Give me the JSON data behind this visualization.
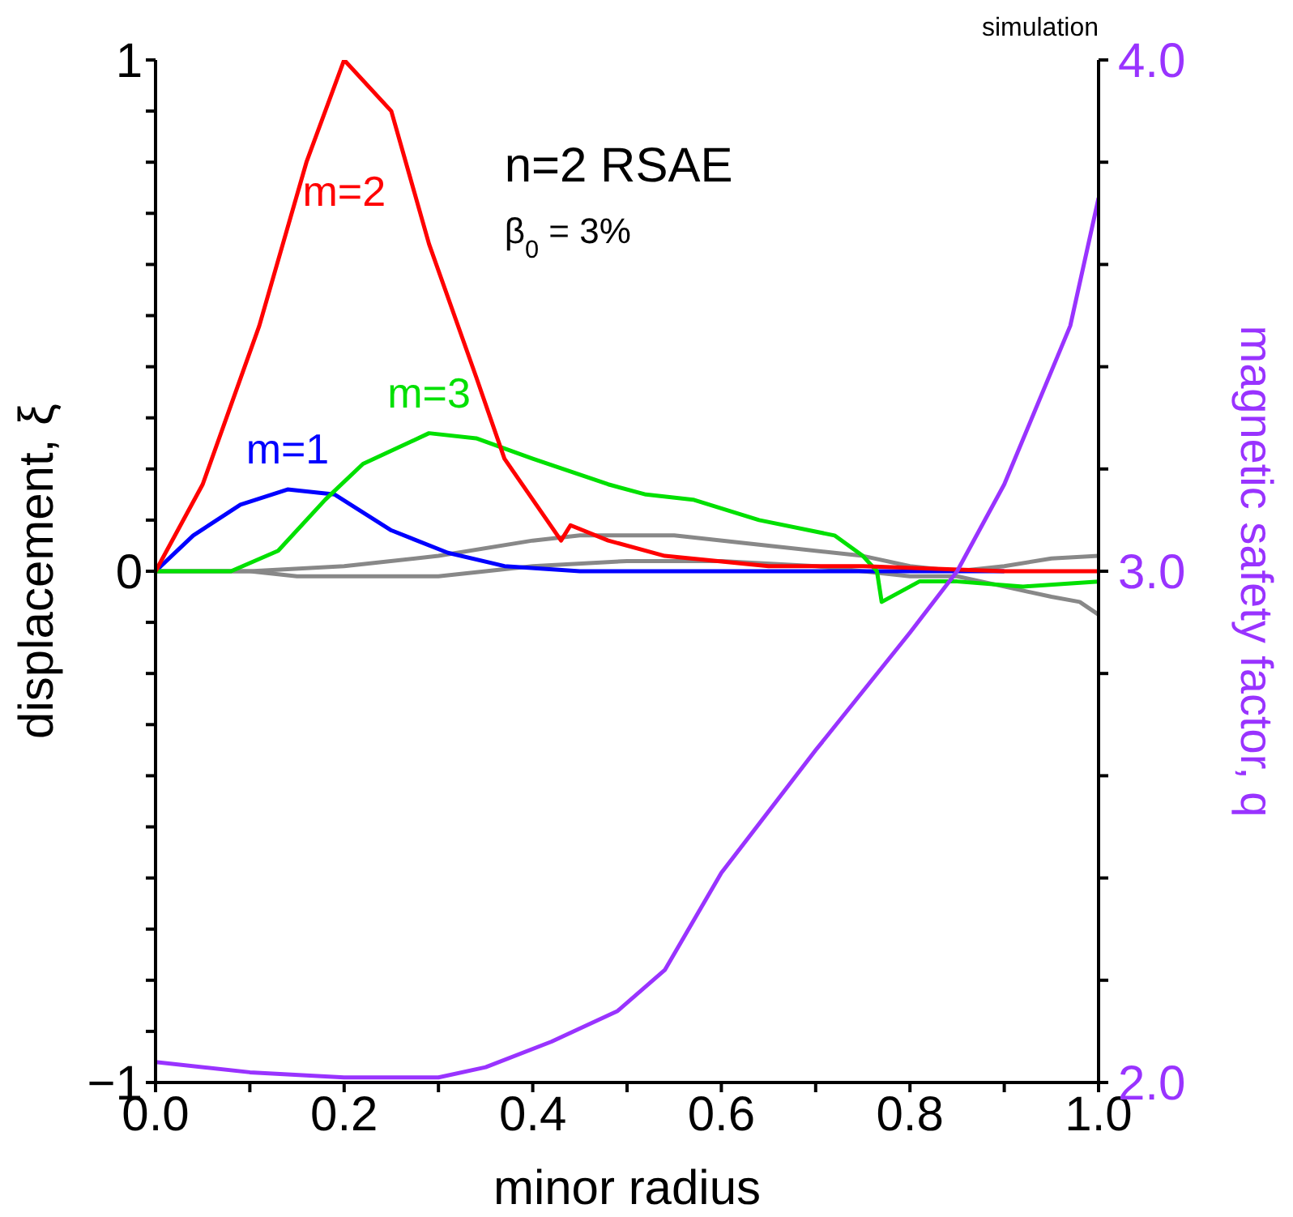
{
  "chart_data": {
    "type": "line",
    "xlabel": "minor radius",
    "ylabel": "displacement, ξ",
    "y2label": "magnetic safety factor, q",
    "annotations": [
      "simulation",
      "n=2 RSAE",
      "β$_{0}$ = 3%"
    ],
    "xlim": [
      0,
      1
    ],
    "xticks": [
      {
        "value": 0,
        "label": "0.0"
      },
      {
        "value": 0.1,
        "label": null
      },
      {
        "value": 0.2,
        "label": "0.2"
      },
      {
        "value": 0.3,
        "label": null
      },
      {
        "value": 0.4,
        "label": "0.4"
      },
      {
        "value": 0.5,
        "label": null
      },
      {
        "value": 0.6,
        "label": "0.6"
      },
      {
        "value": 0.7,
        "label": null
      },
      {
        "value": 0.8,
        "label": "0.8"
      },
      {
        "value": 0.9,
        "label": null
      },
      {
        "value": 1,
        "label": "1.0"
      }
    ],
    "ylim": [
      -1,
      1
    ],
    "yticks": [
      {
        "value": -1,
        "label": "−1"
      },
      {
        "value": -0.9,
        "label": null
      },
      {
        "value": -0.8,
        "label": null
      },
      {
        "value": -0.7,
        "label": null
      },
      {
        "value": -0.6,
        "label": null
      },
      {
        "value": -0.5,
        "label": null
      },
      {
        "value": -0.4,
        "label": null
      },
      {
        "value": -0.3,
        "label": null
      },
      {
        "value": -0.2,
        "label": null
      },
      {
        "value": -0.1,
        "label": null
      },
      {
        "value": 0,
        "label": "0"
      },
      {
        "value": 0.1,
        "label": null
      },
      {
        "value": 0.2,
        "label": null
      },
      {
        "value": 0.3,
        "label": null
      },
      {
        "value": 0.4,
        "label": null
      },
      {
        "value": 0.5,
        "label": null
      },
      {
        "value": 0.6,
        "label": null
      },
      {
        "value": 0.7,
        "label": null
      },
      {
        "value": 0.8,
        "label": null
      },
      {
        "value": 0.9,
        "label": null
      },
      {
        "value": 1,
        "label": "1"
      }
    ],
    "y2lim": [
      2,
      4
    ],
    "y2ticks": [
      {
        "value": 2,
        "label": "2.0"
      },
      {
        "value": 2.2,
        "label": null
      },
      {
        "value": 2.4,
        "label": null
      },
      {
        "value": 2.6,
        "label": null
      },
      {
        "value": 2.8,
        "label": null
      },
      {
        "value": 3,
        "label": "3.0"
      },
      {
        "value": 3.2,
        "label": null
      },
      {
        "value": 3.4,
        "label": null
      },
      {
        "value": 3.6,
        "label": null
      },
      {
        "value": 3.8,
        "label": null
      },
      {
        "value": 4,
        "label": "4.0"
      }
    ],
    "marker": "none",
    "line_style": "solid",
    "series": [
      {
        "color": "#888888",
        "x": [
          0,
          0.1,
          0.2,
          0.3,
          0.4,
          0.45,
          0.55,
          0.65,
          0.75,
          0.8,
          0.85,
          0.9,
          0.95,
          1.0
        ],
        "values": [
          0,
          0,
          0.01,
          0.03,
          0.06,
          0.07,
          0.07,
          0.05,
          0.03,
          0.01,
          0,
          0.01,
          0.025,
          0.03
        ]
      },
      {
        "color": "#888888",
        "x": [
          0,
          0.1,
          0.15,
          0.3,
          0.4,
          0.5,
          0.6,
          0.7,
          0.75,
          0.8,
          0.85,
          0.9,
          0.95,
          0.98,
          1.0
        ],
        "values": [
          0,
          0,
          -0.01,
          -0.01,
          0.01,
          0.02,
          0.02,
          0.01,
          0,
          -0.01,
          -0.01,
          -0.03,
          -0.05,
          -0.06,
          -0.085
        ]
      },
      {
        "name": "m=1",
        "color": "#0000ff",
        "x": [
          0,
          0.04,
          0.09,
          0.14,
          0.19,
          0.25,
          0.31,
          0.37,
          0.45,
          0.6,
          0.75,
          0.9
        ],
        "values": [
          0,
          0.07,
          0.13,
          0.16,
          0.15,
          0.08,
          0.036,
          0.01,
          0,
          0,
          0,
          0
        ]
      },
      {
        "name": "m=3",
        "color": "#00e000",
        "x": [
          0,
          0.08,
          0.13,
          0.18,
          0.22,
          0.29,
          0.34,
          0.4,
          0.48,
          0.52,
          0.57,
          0.64,
          0.72,
          0.75,
          0.765,
          0.77,
          0.81,
          0.85,
          0.92,
          1.0
        ],
        "values": [
          0,
          0,
          0.04,
          0.14,
          0.21,
          0.27,
          0.26,
          0.22,
          0.17,
          0.15,
          0.14,
          0.1,
          0.07,
          0.03,
          0,
          -0.06,
          -0.02,
          -0.02,
          -0.03,
          -0.02
        ]
      },
      {
        "name": "m=2",
        "color": "#ff0000",
        "x": [
          0,
          0.05,
          0.11,
          0.16,
          0.2,
          0.25,
          0.29,
          0.34,
          0.37,
          0.43,
          0.44,
          0.48,
          0.54,
          0.65,
          0.75,
          0.9,
          1.0
        ],
        "values": [
          0,
          0.17,
          0.48,
          0.8,
          1.0,
          0.9,
          0.64,
          0.38,
          0.22,
          0.06,
          0.09,
          0.06,
          0.03,
          0.01,
          0.01,
          0,
          0
        ]
      },
      {
        "color": "#9933ff",
        "axis": "y2",
        "x": [
          0,
          0.1,
          0.2,
          0.3,
          0.35,
          0.42,
          0.49,
          0.54,
          0.6,
          0.7,
          0.8,
          0.85,
          0.9,
          0.97,
          1.0
        ],
        "values": [
          2.04,
          2.02,
          2.01,
          2.01,
          2.03,
          2.08,
          2.14,
          2.22,
          2.41,
          2.65,
          2.88,
          3.0,
          3.17,
          3.48,
          3.73
        ]
      }
    ]
  }
}
